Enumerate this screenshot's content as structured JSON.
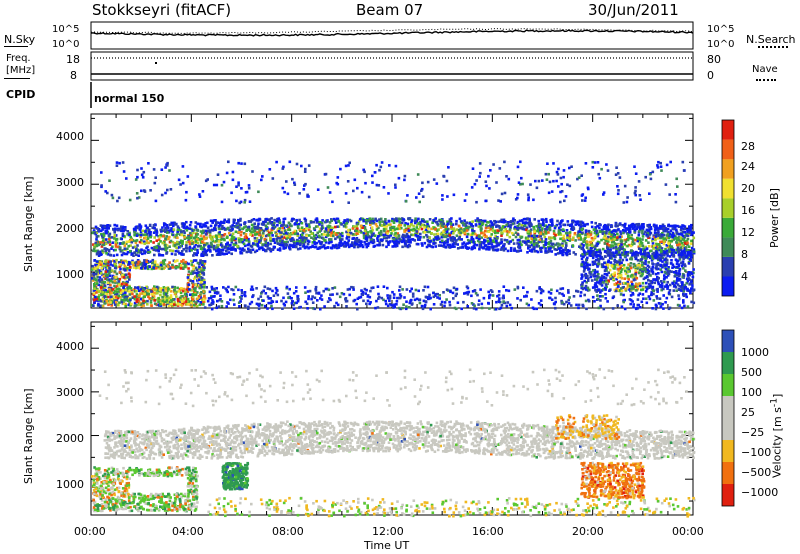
{
  "header": {
    "station": "Stokkseyri (fitACF)",
    "beam": "Beam 07",
    "date": "30/Jun/2011"
  },
  "noise_panel": {
    "left_label": "N.Sky",
    "right_label": "N.Search",
    "left_ticks": [
      "10^5",
      "10^0"
    ],
    "right_ticks": [
      "10^5",
      "10^0"
    ]
  },
  "freq_panel": {
    "left_label_line1": "Freq.",
    "left_label_line2": "[MHz]",
    "right_label": "Nave",
    "left_ticks": [
      "18",
      "8"
    ],
    "right_ticks": [
      "80",
      "0"
    ]
  },
  "cpid_panel": {
    "label": "CPID",
    "mode": "normal 150"
  },
  "chart_data": [
    {
      "type": "heatmap",
      "parameter": "Power",
      "ylabel": "Slant Range [km]",
      "ylim": [
        180,
        4600
      ],
      "yticks": [
        "4000",
        "3000",
        "2000",
        "1000"
      ],
      "xlim_hours": [
        0,
        24
      ],
      "colorbar": {
        "label": "Power [dB]",
        "ticks": [
          "28",
          "24",
          "20",
          "16",
          "12",
          "8",
          "4"
        ],
        "colors": [
          "#0b1cf0",
          "#2a3fb0",
          "#3f8a58",
          "#3aaa38",
          "#a8cf2a",
          "#f0e030",
          "#f0a020",
          "#f06018",
          "#e02010"
        ]
      },
      "structures": [
        {
          "name": "main_band",
          "range_km": [
            1500,
            2200
          ],
          "time_h": [
            0,
            24
          ]
        },
        {
          "name": "near_range_echo",
          "range_km": [
            400,
            1300
          ],
          "time_h": [
            0,
            4.5
          ]
        },
        {
          "name": "far_scatter",
          "range_km": [
            2700,
            3500
          ],
          "time_h": [
            0.3,
            23.8
          ]
        },
        {
          "name": "evening_echo",
          "range_km": [
            600,
            1500
          ],
          "time_h": [
            19.5,
            24
          ]
        }
      ]
    },
    {
      "type": "heatmap",
      "parameter": "Velocity",
      "ylabel": "Slant Range [km]",
      "ylim": [
        180,
        4600
      ],
      "yticks": [
        "4000",
        "3000",
        "2000",
        "1000"
      ],
      "xlabel": "Time UT",
      "xticks": [
        "00:00",
        "04:00",
        "08:00",
        "12:00",
        "16:00",
        "20:00",
        "00:00"
      ],
      "colorbar": {
        "label": "Velocity",
        "unit_html": "[m s<sup>-1</sup>]",
        "ticks": [
          "1000",
          "500",
          "100",
          "25",
          "−25",
          "−100",
          "−500",
          "−1000"
        ],
        "colors": [
          "#2d50b8",
          "#2f9a50",
          "#5ac830",
          "#c8c8c0",
          "#c8c8c0",
          "#f0b820",
          "#f07010",
          "#e02010"
        ]
      },
      "structures": [
        {
          "name": "ground_scatter_band",
          "range_km": [
            1500,
            2300
          ],
          "time_h": [
            0.5,
            24
          ]
        },
        {
          "name": "positive_velocity_patch",
          "range_km": [
            800,
            1400
          ],
          "time_h": [
            5.2,
            6.2
          ]
        },
        {
          "name": "negative_velocity_echo",
          "range_km": [
            600,
            1400
          ],
          "time_h": [
            19.5,
            22
          ]
        }
      ]
    }
  ]
}
